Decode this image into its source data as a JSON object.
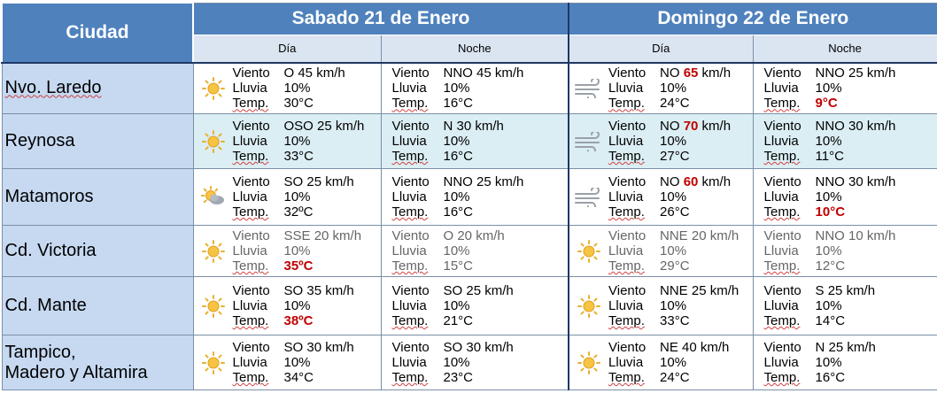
{
  "header": {
    "city": "Ciudad",
    "day1": "Sabado 21 de Enero",
    "day2": "Domingo 22 de Enero",
    "dia": "Día",
    "noche": "Noche"
  },
  "labels": {
    "viento": "Viento",
    "lluvia": "Lluvia",
    "temp": "Temp."
  },
  "rows": [
    {
      "city": "Nvo. Laredo",
      "cells": [
        {
          "icon": "sun-icon",
          "wind_dir": "O",
          "wind_pre": "45",
          "wind_speed": "",
          "wind_unit": "km/h",
          "rain": "10%",
          "temp_val": "30°C",
          "temp_red": ""
        },
        {
          "icon": "",
          "wind_dir": "NNO",
          "wind_pre": "45",
          "wind_speed": "",
          "wind_unit": "km/h",
          "rain": "10%",
          "temp_val": "16°C",
          "temp_red": ""
        },
        {
          "icon": "wind-icon",
          "wind_dir": "NO",
          "wind_pre": "",
          "wind_speed": "65",
          "wind_unit": "km/h",
          "rain": "10%",
          "temp_val": "24°C",
          "temp_red": ""
        },
        {
          "icon": "",
          "wind_dir": "NNO",
          "wind_pre": "25",
          "wind_speed": "",
          "wind_unit": "km/h",
          "rain": "10%",
          "temp_val": "",
          "temp_red": "9°C"
        }
      ]
    },
    {
      "city": "Reynosa",
      "cells": [
        {
          "icon": "sun-icon",
          "wind_dir": "OSO",
          "wind_pre": "25",
          "wind_speed": "",
          "wind_unit": "km/h",
          "rain": "10%",
          "temp_val": "33°C",
          "temp_red": ""
        },
        {
          "icon": "",
          "wind_dir": "N",
          "wind_pre": "30",
          "wind_speed": "",
          "wind_unit": "km/h",
          "rain": "10%",
          "temp_val": "16°C",
          "temp_red": ""
        },
        {
          "icon": "wind-icon",
          "wind_dir": "NO",
          "wind_pre": "",
          "wind_speed": "70",
          "wind_unit": "km/h",
          "rain": "10%",
          "temp_val": "27°C",
          "temp_red": ""
        },
        {
          "icon": "",
          "wind_dir": "NNO",
          "wind_pre": "30",
          "wind_speed": "",
          "wind_unit": "km/h",
          "rain": "10%",
          "temp_val": "11°C",
          "temp_red": ""
        }
      ]
    },
    {
      "city": "Matamoros",
      "cells": [
        {
          "icon": "partly-cloudy-icon",
          "wind_dir": "SO",
          "wind_pre": "25",
          "wind_speed": "",
          "wind_unit": "km/h",
          "rain": "10%",
          "temp_val": "32ºC",
          "temp_red": ""
        },
        {
          "icon": "",
          "wind_dir": "NNO",
          "wind_pre": "25",
          "wind_speed": "",
          "wind_unit": "km/h",
          "rain": "10%",
          "temp_val": "16°C",
          "temp_red": ""
        },
        {
          "icon": "wind-icon",
          "wind_dir": "NO",
          "wind_pre": "",
          "wind_speed": "60",
          "wind_unit": "km/h",
          "rain": "10%",
          "temp_val": "26°C",
          "temp_red": ""
        },
        {
          "icon": "",
          "wind_dir": "NNO",
          "wind_pre": "30",
          "wind_speed": "",
          "wind_unit": "km/h",
          "rain": "10%",
          "temp_val": "",
          "temp_red": "10°C"
        }
      ]
    },
    {
      "city": "Cd. Victoria",
      "cells": [
        {
          "icon": "sun-icon",
          "wind_dir": "SSE",
          "wind_pre": "20",
          "wind_speed": "",
          "wind_unit": "km/h",
          "rain": "10%",
          "temp_val": "",
          "temp_red": "35ºC"
        },
        {
          "icon": "",
          "wind_dir": "O",
          "wind_pre": "20",
          "wind_speed": "",
          "wind_unit": "km/h",
          "rain": "10%",
          "temp_val": "15°C",
          "temp_red": ""
        },
        {
          "icon": "sun-icon",
          "wind_dir": "NNE",
          "wind_pre": "20",
          "wind_speed": "",
          "wind_unit": "km/h",
          "rain": "10%",
          "temp_val": "29°C",
          "temp_red": ""
        },
        {
          "icon": "",
          "wind_dir": "NNO",
          "wind_pre": "10",
          "wind_speed": "",
          "wind_unit": "km/h",
          "rain": "10%",
          "temp_val": "12°C",
          "temp_red": ""
        }
      ]
    },
    {
      "city": "Cd. Mante",
      "cells": [
        {
          "icon": "sun-icon",
          "wind_dir": "SO",
          "wind_pre": "35",
          "wind_speed": "",
          "wind_unit": "km/h",
          "rain": "10%",
          "temp_val": "",
          "temp_red": "38ºC"
        },
        {
          "icon": "",
          "wind_dir": "SO",
          "wind_pre": "25",
          "wind_speed": "",
          "wind_unit": "km/h",
          "rain": "10%",
          "temp_val": "21°C",
          "temp_red": ""
        },
        {
          "icon": "sun-icon",
          "wind_dir": "NNE",
          "wind_pre": "25",
          "wind_speed": "",
          "wind_unit": "km/h",
          "rain": "10%",
          "temp_val": "33°C",
          "temp_red": ""
        },
        {
          "icon": "",
          "wind_dir": "S",
          "wind_pre": "25",
          "wind_speed": "",
          "wind_unit": "km/h",
          "rain": "10%",
          "temp_val": "14°C",
          "temp_red": ""
        }
      ]
    },
    {
      "city": "Tampico,",
      "city2": "Madero y Altamira",
      "cells": [
        {
          "icon": "sun-icon",
          "wind_dir": "SO",
          "wind_pre": "30",
          "wind_speed": "",
          "wind_unit": "km/h",
          "rain": "10%",
          "temp_val": "34°C",
          "temp_red": ""
        },
        {
          "icon": "",
          "wind_dir": "SO",
          "wind_pre": "30",
          "wind_speed": "",
          "wind_unit": "km/h",
          "rain": "10%",
          "temp_val": "23°C",
          "temp_red": ""
        },
        {
          "icon": "sun-icon",
          "wind_dir": "NE",
          "wind_pre": "40",
          "wind_speed": "",
          "wind_unit": "km/h",
          "rain": "10%",
          "temp_val": "24°C",
          "temp_red": ""
        },
        {
          "icon": "",
          "wind_dir": "N",
          "wind_pre": "25",
          "wind_speed": "",
          "wind_unit": "km/h",
          "rain": "10%",
          "temp_val": "16°C",
          "temp_red": ""
        }
      ]
    }
  ]
}
